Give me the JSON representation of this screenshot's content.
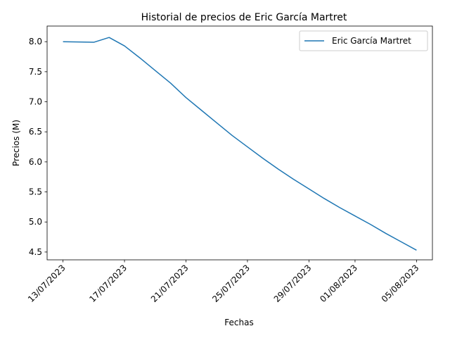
{
  "chart_data": {
    "type": "line",
    "title": "Historial de precios de Eric García Martret",
    "xlabel": "Fechas",
    "ylabel": "Precios (M)",
    "x_tick_labels": [
      "13/07/2023",
      "17/07/2023",
      "21/07/2023",
      "25/07/2023",
      "29/07/2023",
      "01/08/2023",
      "05/08/2023"
    ],
    "y_tick_labels": [
      "4.5",
      "5.0",
      "5.5",
      "6.0",
      "6.5",
      "7.0",
      "7.5",
      "8.0"
    ],
    "ylim": [
      4.37,
      8.26
    ],
    "grid": false,
    "legend_position": "upper-right",
    "series": [
      {
        "name": "Eric García Martret",
        "color": "#1f77b4",
        "x": [
          "13/07/2023",
          "15/07/2023",
          "16/07/2023",
          "17/07/2023",
          "18/07/2023",
          "19/07/2023",
          "20/07/2023",
          "21/07/2023",
          "22/07/2023",
          "23/07/2023",
          "24/07/2023",
          "25/07/2023",
          "26/07/2023",
          "27/07/2023",
          "28/07/2023",
          "29/07/2023",
          "30/07/2023",
          "31/07/2023",
          "01/08/2023",
          "02/08/2023",
          "03/08/2023",
          "04/08/2023",
          "05/08/2023"
        ],
        "values": [
          8.0,
          7.99,
          8.07,
          7.93,
          7.73,
          7.52,
          7.31,
          7.07,
          6.86,
          6.65,
          6.44,
          6.25,
          6.06,
          5.88,
          5.71,
          5.55,
          5.39,
          5.24,
          5.1,
          4.96,
          4.81,
          4.67,
          4.53
        ]
      }
    ]
  }
}
